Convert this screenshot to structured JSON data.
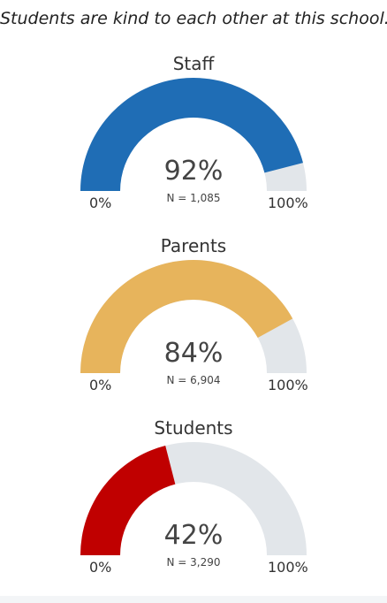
{
  "title": "Students are kind to each other at this school.",
  "colors": {
    "staff": "#1f6db5",
    "parents": "#e7b45c",
    "students": "#c00000",
    "track": "#e2e6ea"
  },
  "chart_data": [
    {
      "type": "gauge",
      "title": "Staff",
      "value": 92,
      "value_label": "92%",
      "n_label": "N = 1,085",
      "min_label": "0%",
      "max_label": "100%",
      "range": [
        0,
        100
      ]
    },
    {
      "type": "gauge",
      "title": "Parents",
      "value": 84,
      "value_label": "84%",
      "n_label": "N = 6,904",
      "min_label": "0%",
      "max_label": "100%",
      "range": [
        0,
        100
      ]
    },
    {
      "type": "gauge",
      "title": "Students",
      "value": 42,
      "value_label": "42%",
      "n_label": "N = 3,290",
      "min_label": "0%",
      "max_label": "100%",
      "range": [
        0,
        100
      ]
    }
  ]
}
